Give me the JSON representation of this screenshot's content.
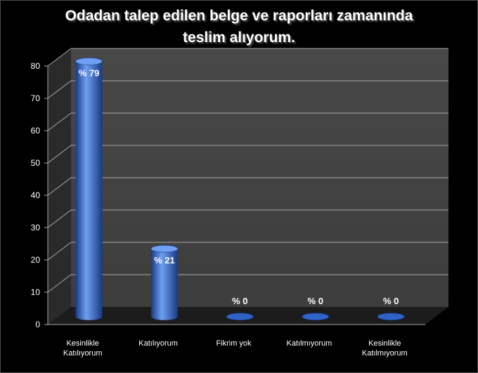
{
  "chart_data": {
    "type": "bar",
    "title_lines": [
      "Odadan talep edilen belge ve raporları zamanında",
      "teslim alıyorum."
    ],
    "categories": [
      [
        "Kesinlikle",
        "Katılıyorum"
      ],
      [
        "Katılıyorum"
      ],
      [
        "Fikrim yok"
      ],
      [
        "Katılmıyorum"
      ],
      [
        "Kesinlikle",
        "Katılmıyorum"
      ]
    ],
    "values": [
      79,
      21,
      0,
      0,
      0
    ],
    "data_labels": [
      "% 79",
      "% 21",
      "% 0",
      "% 0",
      "% 0"
    ],
    "y_ticks": [
      "0",
      "10",
      "20",
      "30",
      "40",
      "50",
      "60",
      "70",
      "80"
    ],
    "ylim": [
      0,
      80
    ],
    "grid": true,
    "legend": "none",
    "colors": {
      "bar": "#2f63c8",
      "bar_light": "#6e9ff0",
      "bar_dark": "#173a85",
      "plot_wall": "#3d3d3d",
      "grid": "#a9a9a9",
      "text": "#ffffff"
    }
  }
}
